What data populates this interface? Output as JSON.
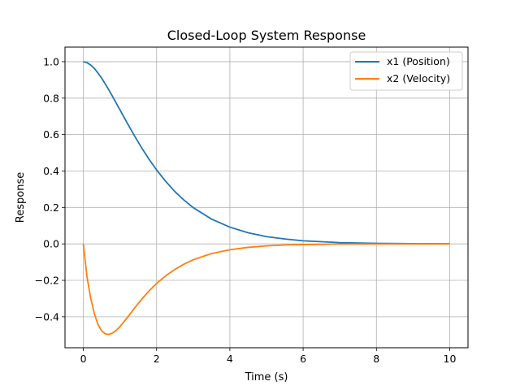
{
  "chart_data": {
    "type": "line",
    "title": "Closed-Loop System Response",
    "xlabel": "Time (s)",
    "ylabel": "Response",
    "xlim": [
      -0.5,
      10.5
    ],
    "ylim": [
      -0.57,
      1.08
    ],
    "xticks": [
      0,
      2,
      4,
      6,
      8,
      10
    ],
    "yticks": [
      -0.4,
      -0.2,
      0.0,
      0.2,
      0.4,
      0.6,
      0.8,
      1.0
    ],
    "xtick_labels": [
      "0",
      "2",
      "4",
      "6",
      "8",
      "10"
    ],
    "ytick_labels": [
      "−0.4",
      "−0.2",
      "0.0",
      "0.2",
      "0.4",
      "0.6",
      "0.8",
      "1.0"
    ],
    "grid": true,
    "legend_position": "top-right",
    "series": [
      {
        "name": "x1 (Position)",
        "color": "#1f77b4",
        "x": [
          0,
          0.1,
          0.2,
          0.3,
          0.4,
          0.5,
          0.6,
          0.7,
          0.8,
          0.9,
          1.0,
          1.2,
          1.4,
          1.6,
          1.8,
          2.0,
          2.25,
          2.5,
          2.75,
          3.0,
          3.5,
          4.0,
          4.5,
          5.0,
          5.5,
          6.0,
          7.0,
          8.0,
          9.0,
          10.0
        ],
        "y": [
          1.0,
          0.995,
          0.982,
          0.963,
          0.938,
          0.91,
          0.878,
          0.844,
          0.809,
          0.772,
          0.736,
          0.663,
          0.592,
          0.525,
          0.463,
          0.406,
          0.343,
          0.287,
          0.24,
          0.199,
          0.136,
          0.092,
          0.061,
          0.04,
          0.027,
          0.017,
          0.007,
          0.003,
          0.001,
          0.0005
        ]
      },
      {
        "name": "x2 (Velocity)",
        "color": "#ff7f0e",
        "x": [
          0,
          0.1,
          0.2,
          0.3,
          0.4,
          0.5,
          0.6,
          0.7,
          0.8,
          0.9,
          1.0,
          1.2,
          1.4,
          1.6,
          1.8,
          2.0,
          2.25,
          2.5,
          2.75,
          3.0,
          3.5,
          4.0,
          4.5,
          5.0,
          5.5,
          6.0,
          7.0,
          8.0,
          9.0,
          10.0
        ],
        "y": [
          0.0,
          -0.181,
          -0.296,
          -0.383,
          -0.442,
          -0.477,
          -0.494,
          -0.497,
          -0.489,
          -0.474,
          -0.454,
          -0.405,
          -0.352,
          -0.302,
          -0.257,
          -0.217,
          -0.175,
          -0.14,
          -0.111,
          -0.087,
          -0.053,
          -0.032,
          -0.019,
          -0.011,
          -0.006,
          -0.004,
          -0.001,
          -0.0004,
          -0.0001,
          0.0
        ]
      }
    ]
  }
}
